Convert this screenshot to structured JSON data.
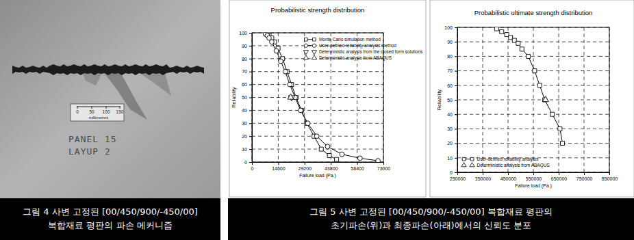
{
  "photo": {
    "scale_labels": [
      "0",
      "50",
      "100",
      "150"
    ],
    "scale_unit": "millimetres",
    "panel_text": [
      "PANEL 15",
      "LAYUP 2"
    ]
  },
  "captions": [
    [
      "그림 4 사변 고정된 [00/450/900/-450/00]",
      "복합재료 평판의 파손 메커니즘"
    ],
    [
      "그림 5 사변 고정된 [00/450/900/-450/00] 복합재료 평판의",
      "초기파손(위)과 최종파손(아래)에서의 신뢰도 분포"
    ]
  ],
  "chart_data": [
    {
      "type": "line",
      "title": "Probabilistic strength distribution",
      "x_label": "Failure load (Pa.)",
      "y_label": "Reliability",
      "xlim": [
        0,
        73000
      ],
      "xticks": [
        0,
        14600,
        29200,
        43800,
        58400,
        73000
      ],
      "ylim": [
        0,
        100
      ],
      "yticks": [
        0,
        10,
        20,
        30,
        40,
        50,
        60,
        70,
        80,
        90,
        100
      ],
      "grid": true,
      "legend": "upper right",
      "series": [
        {
          "name": "Monte Carlo simulation method",
          "color": "#000000",
          "marker": "square",
          "line_style": "solid",
          "x": [
            8000,
            9500,
            11000,
            12500,
            14500,
            17000,
            19500,
            22000,
            24500,
            27500,
            30500,
            34500,
            38500,
            43000,
            47000
          ],
          "values": [
            99,
            98,
            96,
            93,
            88,
            80,
            70,
            60,
            50,
            40,
            30,
            20,
            10,
            5,
            2
          ]
        },
        {
          "name": "User-defined reliability analysis method",
          "color": "#000000",
          "marker": "circle",
          "line_style": "solid",
          "x": [
            7500,
            8500,
            9500,
            11000,
            13500,
            16000,
            18500,
            21000,
            24000,
            27000,
            31000,
            36000,
            42000,
            50000,
            60000,
            70000
          ],
          "values": [
            99,
            98,
            96,
            93,
            86,
            78,
            70,
            60,
            50,
            40,
            30,
            20,
            12,
            6,
            3,
            1
          ]
        },
        {
          "name": "Deterministic analysis from the closed form solutions",
          "color": "#000000",
          "marker": "triangle-down",
          "line_style": "none",
          "x": [
            22000
          ],
          "values": [
            50
          ]
        },
        {
          "name": "Deterministic analysis from ABAQUS",
          "color": "#000000",
          "marker": "triangle",
          "line_style": "none",
          "x": [
            21500
          ],
          "values": [
            50
          ]
        }
      ]
    },
    {
      "type": "line",
      "title": "Probabilistic ultimate strength distribution",
      "x_label": "Failure load (Pa.)",
      "y_label": "Reliability",
      "xlim": [
        250000,
        850000
      ],
      "xticks": [
        250000,
        350000,
        450000,
        550000,
        650000,
        750000,
        850000
      ],
      "ylim": [
        0,
        100
      ],
      "yticks": [
        0,
        10,
        20,
        30,
        40,
        50,
        60,
        70,
        80,
        90,
        100
      ],
      "grid": true,
      "legend": "lower left",
      "series": [
        {
          "name": "User-defined reliability analysis",
          "color": "#000000",
          "marker": "square",
          "line_style": "solid",
          "x": [
            405000,
            425000,
            445000,
            460000,
            475000,
            490000,
            505000,
            530000,
            555000,
            575000,
            595000,
            625000,
            655000,
            665000
          ],
          "values": [
            99,
            97,
            95,
            93,
            91,
            89,
            85,
            80,
            70,
            60,
            50,
            40,
            30,
            20
          ]
        },
        {
          "name": "Deterministic analysis from ABAQUS",
          "color": "#000000",
          "marker": "triangle",
          "line_style": "none",
          "x": [
            598000
          ],
          "values": [
            50
          ]
        }
      ]
    }
  ]
}
